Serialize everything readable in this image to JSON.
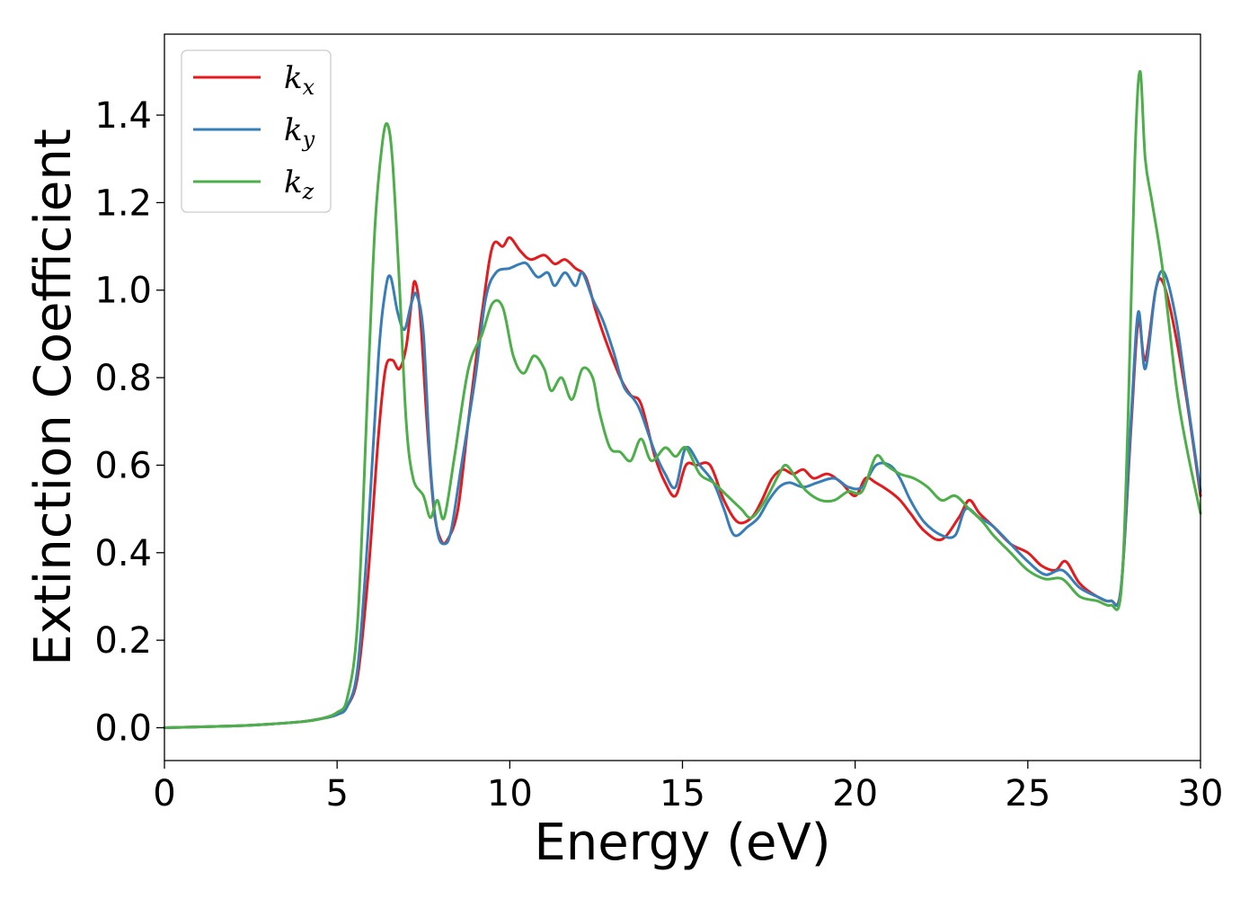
{
  "chart_data": {
    "type": "line",
    "title": "",
    "xlabel": "Energy (eV)",
    "ylabel": "Extinction Coefficient",
    "xlim": [
      0,
      30
    ],
    "ylim": [
      -0.075,
      1.585
    ],
    "xticks": [
      0,
      5,
      10,
      15,
      20,
      25,
      30
    ],
    "xtick_labels": [
      "0",
      "5",
      "10",
      "15",
      "20",
      "25",
      "30"
    ],
    "yticks": [
      0.0,
      0.2,
      0.4,
      0.6,
      0.8,
      1.0,
      1.2,
      1.4
    ],
    "ytick_labels": [
      "0.0",
      "0.2",
      "0.4",
      "0.6",
      "0.8",
      "1.0",
      "1.2",
      "1.4"
    ],
    "grid": false,
    "legend_position": "top-left",
    "series": [
      {
        "name": "k",
        "subscript": "x",
        "color": "#e41a1c",
        "points": [
          [
            0,
            0
          ],
          [
            2,
            0.004
          ],
          [
            3,
            0.008
          ],
          [
            4,
            0.014
          ],
          [
            4.5,
            0.02
          ],
          [
            5,
            0.03
          ],
          [
            5.3,
            0.05
          ],
          [
            5.6,
            0.12
          ],
          [
            5.9,
            0.35
          ],
          [
            6.2,
            0.67
          ],
          [
            6.4,
            0.82
          ],
          [
            6.6,
            0.84
          ],
          [
            6.8,
            0.82
          ],
          [
            7,
            0.87
          ],
          [
            7.15,
            0.97
          ],
          [
            7.25,
            1.02
          ],
          [
            7.4,
            0.95
          ],
          [
            7.6,
            0.7
          ],
          [
            7.8,
            0.5
          ],
          [
            8,
            0.43
          ],
          [
            8.2,
            0.43
          ],
          [
            8.5,
            0.5
          ],
          [
            8.8,
            0.7
          ],
          [
            9.2,
            0.95
          ],
          [
            9.5,
            1.1
          ],
          [
            9.8,
            1.1
          ],
          [
            10.0,
            1.12
          ],
          [
            10.3,
            1.09
          ],
          [
            10.6,
            1.07
          ],
          [
            11.0,
            1.08
          ],
          [
            11.3,
            1.06
          ],
          [
            11.6,
            1.07
          ],
          [
            11.9,
            1.05
          ],
          [
            12.2,
            1.03
          ],
          [
            12.5,
            0.95
          ],
          [
            12.8,
            0.88
          ],
          [
            13.2,
            0.8
          ],
          [
            13.5,
            0.76
          ],
          [
            13.8,
            0.74
          ],
          [
            14.2,
            0.62
          ],
          [
            14.5,
            0.56
          ],
          [
            14.8,
            0.53
          ],
          [
            15.1,
            0.6
          ],
          [
            15.4,
            0.6
          ],
          [
            15.8,
            0.6
          ],
          [
            16.2,
            0.52
          ],
          [
            16.6,
            0.47
          ],
          [
            17.0,
            0.48
          ],
          [
            17.3,
            0.52
          ],
          [
            17.6,
            0.57
          ],
          [
            17.9,
            0.59
          ],
          [
            18.2,
            0.58
          ],
          [
            18.5,
            0.59
          ],
          [
            18.8,
            0.57
          ],
          [
            19.2,
            0.58
          ],
          [
            19.6,
            0.56
          ],
          [
            20.0,
            0.53
          ],
          [
            20.3,
            0.57
          ],
          [
            20.6,
            0.56
          ],
          [
            21.0,
            0.54
          ],
          [
            21.3,
            0.52
          ],
          [
            21.6,
            0.49
          ],
          [
            22.0,
            0.45
          ],
          [
            22.5,
            0.43
          ],
          [
            23.0,
            0.48
          ],
          [
            23.3,
            0.52
          ],
          [
            23.6,
            0.49
          ],
          [
            24.0,
            0.46
          ],
          [
            24.5,
            0.42
          ],
          [
            25.0,
            0.4
          ],
          [
            25.4,
            0.37
          ],
          [
            25.8,
            0.36
          ],
          [
            26.1,
            0.38
          ],
          [
            26.5,
            0.33
          ],
          [
            27.0,
            0.3
          ],
          [
            27.4,
            0.29
          ],
          [
            27.7,
            0.32
          ],
          [
            28.0,
            0.7
          ],
          [
            28.2,
            0.93
          ],
          [
            28.4,
            0.84
          ],
          [
            28.7,
            1.0
          ],
          [
            28.9,
            1.02
          ],
          [
            29.2,
            0.93
          ],
          [
            29.6,
            0.75
          ],
          [
            30.0,
            0.53
          ]
        ]
      },
      {
        "name": "k",
        "subscript": "y",
        "color": "#377eb8",
        "points": [
          [
            0,
            0
          ],
          [
            2,
            0.004
          ],
          [
            3,
            0.008
          ],
          [
            4,
            0.014
          ],
          [
            4.5,
            0.02
          ],
          [
            5,
            0.03
          ],
          [
            5.3,
            0.05
          ],
          [
            5.6,
            0.14
          ],
          [
            5.9,
            0.45
          ],
          [
            6.2,
            0.85
          ],
          [
            6.4,
            1.0
          ],
          [
            6.55,
            1.03
          ],
          [
            6.75,
            0.95
          ],
          [
            6.95,
            0.91
          ],
          [
            7.15,
            0.97
          ],
          [
            7.3,
            0.99
          ],
          [
            7.5,
            0.9
          ],
          [
            7.7,
            0.6
          ],
          [
            7.9,
            0.45
          ],
          [
            8.1,
            0.42
          ],
          [
            8.3,
            0.45
          ],
          [
            8.6,
            0.6
          ],
          [
            9.0,
            0.8
          ],
          [
            9.3,
            0.98
          ],
          [
            9.6,
            1.04
          ],
          [
            10.0,
            1.05
          ],
          [
            10.3,
            1.06
          ],
          [
            10.5,
            1.06
          ],
          [
            10.8,
            1.03
          ],
          [
            11.1,
            1.04
          ],
          [
            11.3,
            1.01
          ],
          [
            11.6,
            1.04
          ],
          [
            11.9,
            1.01
          ],
          [
            12.1,
            1.04
          ],
          [
            12.4,
            0.98
          ],
          [
            12.7,
            0.93
          ],
          [
            13.0,
            0.86
          ],
          [
            13.3,
            0.78
          ],
          [
            13.6,
            0.75
          ],
          [
            13.8,
            0.72
          ],
          [
            14.2,
            0.63
          ],
          [
            14.5,
            0.58
          ],
          [
            14.8,
            0.55
          ],
          [
            15.1,
            0.64
          ],
          [
            15.5,
            0.6
          ],
          [
            15.9,
            0.56
          ],
          [
            16.2,
            0.5
          ],
          [
            16.5,
            0.44
          ],
          [
            16.9,
            0.46
          ],
          [
            17.2,
            0.48
          ],
          [
            17.5,
            0.52
          ],
          [
            17.8,
            0.55
          ],
          [
            18.1,
            0.56
          ],
          [
            18.5,
            0.55
          ],
          [
            18.9,
            0.56
          ],
          [
            19.4,
            0.57
          ],
          [
            19.8,
            0.55
          ],
          [
            20.2,
            0.55
          ],
          [
            20.6,
            0.6
          ],
          [
            21.0,
            0.6
          ],
          [
            21.3,
            0.57
          ],
          [
            21.6,
            0.52
          ],
          [
            22.0,
            0.47
          ],
          [
            22.5,
            0.44
          ],
          [
            22.9,
            0.44
          ],
          [
            23.2,
            0.5
          ],
          [
            23.6,
            0.48
          ],
          [
            24.0,
            0.46
          ],
          [
            24.5,
            0.42
          ],
          [
            25.0,
            0.38
          ],
          [
            25.5,
            0.35
          ],
          [
            26.0,
            0.36
          ],
          [
            26.5,
            0.32
          ],
          [
            27.0,
            0.3
          ],
          [
            27.4,
            0.29
          ],
          [
            27.7,
            0.32
          ],
          [
            28.0,
            0.72
          ],
          [
            28.2,
            0.95
          ],
          [
            28.4,
            0.82
          ],
          [
            28.7,
            1.0
          ],
          [
            28.95,
            1.04
          ],
          [
            29.3,
            0.93
          ],
          [
            29.6,
            0.76
          ],
          [
            30.0,
            0.54
          ]
        ]
      },
      {
        "name": "k",
        "subscript": "z",
        "color": "#4daf4a",
        "points": [
          [
            0,
            0
          ],
          [
            2,
            0.004
          ],
          [
            3,
            0.008
          ],
          [
            4,
            0.014
          ],
          [
            4.5,
            0.02
          ],
          [
            5,
            0.035
          ],
          [
            5.3,
            0.07
          ],
          [
            5.6,
            0.25
          ],
          [
            5.9,
            0.8
          ],
          [
            6.1,
            1.15
          ],
          [
            6.3,
            1.33
          ],
          [
            6.45,
            1.38
          ],
          [
            6.6,
            1.3
          ],
          [
            6.8,
            1.02
          ],
          [
            7.0,
            0.7
          ],
          [
            7.2,
            0.57
          ],
          [
            7.5,
            0.53
          ],
          [
            7.7,
            0.48
          ],
          [
            7.9,
            0.52
          ],
          [
            8.1,
            0.48
          ],
          [
            8.4,
            0.62
          ],
          [
            8.8,
            0.82
          ],
          [
            9.2,
            0.9
          ],
          [
            9.5,
            0.97
          ],
          [
            9.8,
            0.96
          ],
          [
            10.1,
            0.85
          ],
          [
            10.4,
            0.81
          ],
          [
            10.7,
            0.85
          ],
          [
            11.0,
            0.82
          ],
          [
            11.2,
            0.77
          ],
          [
            11.5,
            0.8
          ],
          [
            11.8,
            0.75
          ],
          [
            12.1,
            0.82
          ],
          [
            12.4,
            0.8
          ],
          [
            12.6,
            0.72
          ],
          [
            12.9,
            0.64
          ],
          [
            13.2,
            0.63
          ],
          [
            13.5,
            0.61
          ],
          [
            13.8,
            0.66
          ],
          [
            14.1,
            0.61
          ],
          [
            14.5,
            0.64
          ],
          [
            14.8,
            0.62
          ],
          [
            15.1,
            0.64
          ],
          [
            15.5,
            0.58
          ],
          [
            15.9,
            0.56
          ],
          [
            16.3,
            0.53
          ],
          [
            16.7,
            0.5
          ],
          [
            17.0,
            0.48
          ],
          [
            17.4,
            0.52
          ],
          [
            17.8,
            0.58
          ],
          [
            18.0,
            0.6
          ],
          [
            18.3,
            0.57
          ],
          [
            18.6,
            0.54
          ],
          [
            19.0,
            0.52
          ],
          [
            19.4,
            0.52
          ],
          [
            19.8,
            0.54
          ],
          [
            20.2,
            0.54
          ],
          [
            20.6,
            0.62
          ],
          [
            20.9,
            0.6
          ],
          [
            21.3,
            0.58
          ],
          [
            21.7,
            0.57
          ],
          [
            22.1,
            0.55
          ],
          [
            22.5,
            0.52
          ],
          [
            22.9,
            0.53
          ],
          [
            23.3,
            0.5
          ],
          [
            23.7,
            0.47
          ],
          [
            24.0,
            0.44
          ],
          [
            24.5,
            0.4
          ],
          [
            25.0,
            0.36
          ],
          [
            25.5,
            0.34
          ],
          [
            26.0,
            0.34
          ],
          [
            26.5,
            0.3
          ],
          [
            27.0,
            0.29
          ],
          [
            27.4,
            0.28
          ],
          [
            27.7,
            0.31
          ],
          [
            27.9,
            0.7
          ],
          [
            28.1,
            1.3
          ],
          [
            28.25,
            1.5
          ],
          [
            28.4,
            1.3
          ],
          [
            28.6,
            1.2
          ],
          [
            28.9,
            1.05
          ],
          [
            29.3,
            0.78
          ],
          [
            29.6,
            0.64
          ],
          [
            30.0,
            0.49
          ]
        ]
      }
    ]
  }
}
